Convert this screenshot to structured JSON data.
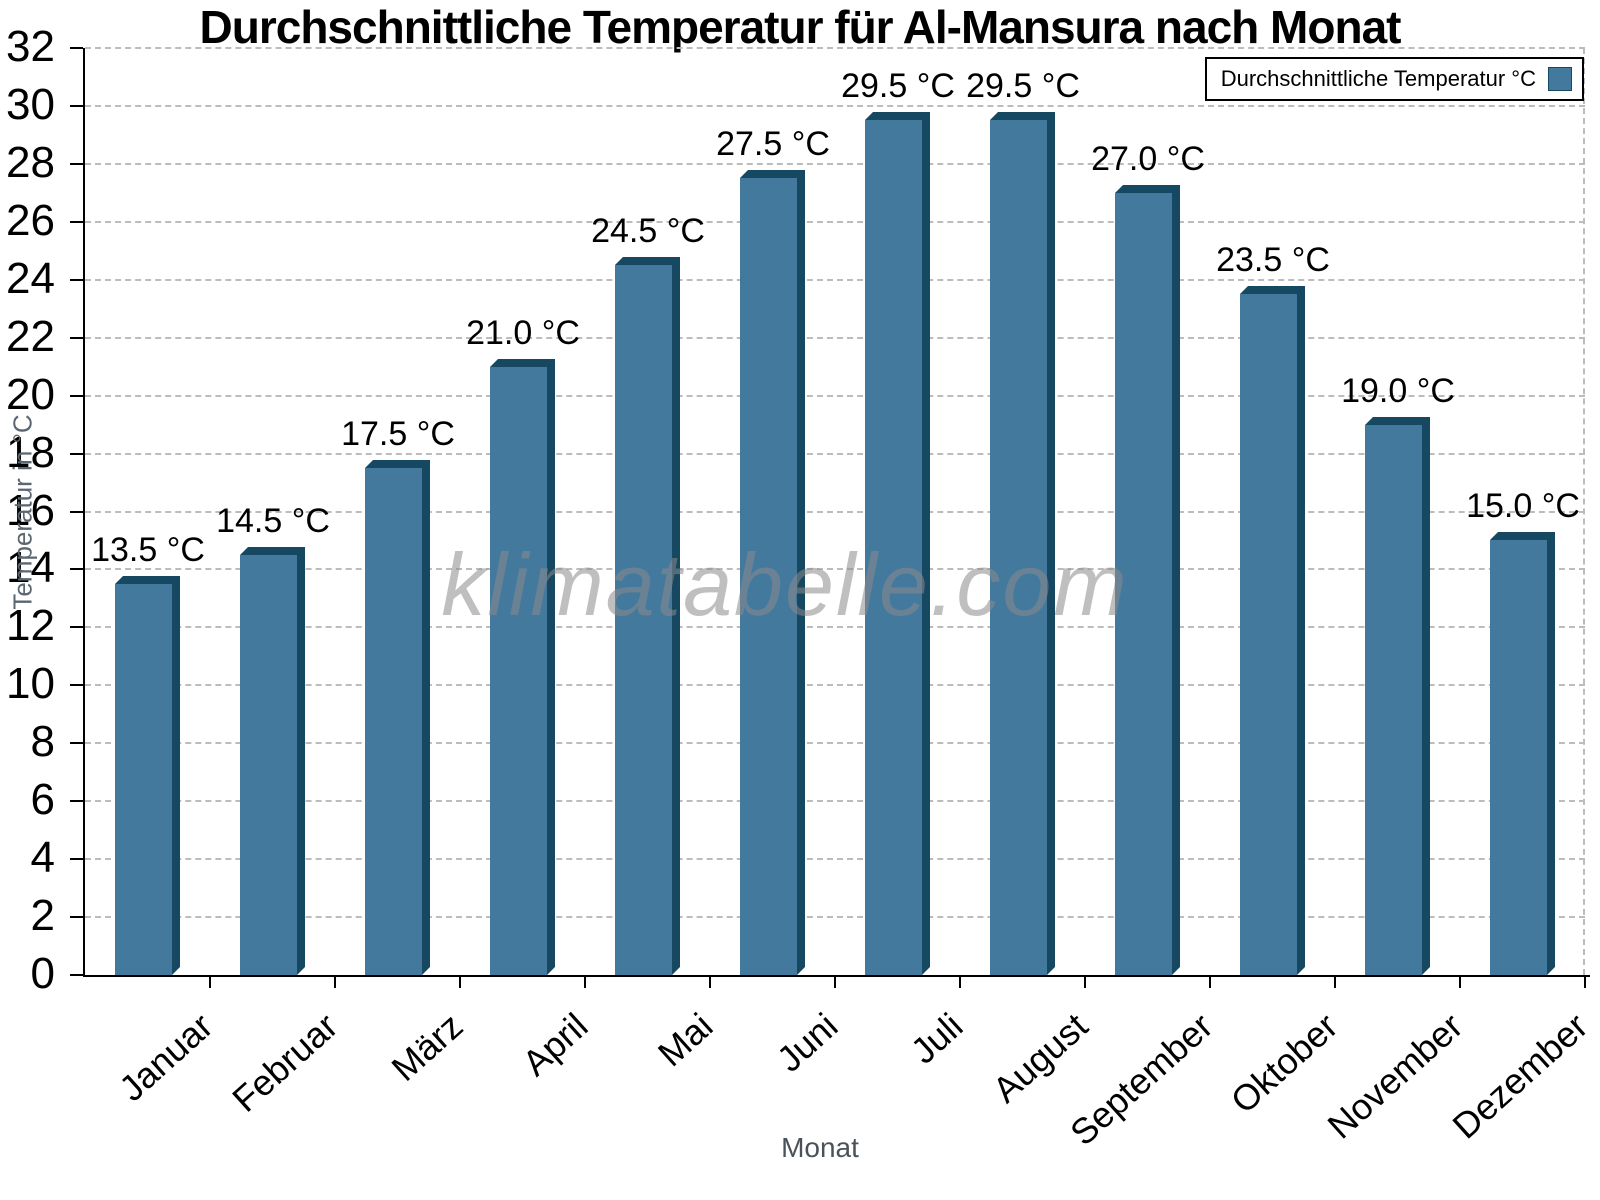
{
  "watermark": "klimatabelle.com",
  "colors": {
    "bar_front": "#44799e",
    "bar_side": "#164862",
    "grid": "#bcbcbc",
    "axis": "#000000",
    "axis_title_gray": "#5b6670",
    "watermark_gray": "#8a8a8a"
  },
  "chart_data": {
    "type": "bar",
    "title": "Durchschnittliche Temperatur für Al-Mansura nach Monat",
    "series_name": "Durchschnittliche Temperatur °C",
    "categories": [
      "Januar",
      "Februar",
      "März",
      "April",
      "Mai",
      "Juni",
      "Juli",
      "August",
      "September",
      "Oktober",
      "November",
      "Dezember"
    ],
    "values": [
      13.5,
      14.5,
      17.5,
      21.0,
      24.5,
      27.5,
      29.5,
      29.5,
      27.0,
      23.5,
      19.0,
      15.0
    ],
    "value_labels": [
      "13.5 °C",
      "14.5 °C",
      "17.5 °C",
      "21.0 °C",
      "24.5 °C",
      "27.5 °C",
      "29.5 °C",
      "29.5 °C",
      "27.0 °C",
      "23.5 °C",
      "19.0 °C",
      "15.0 °C"
    ],
    "xlabel": "Monat",
    "ylabel": "Temperatur in °C",
    "ylim": [
      0,
      32
    ],
    "ytick_step": 2,
    "grid": "horizontal-dashed",
    "legend_position": "top-right",
    "bar_style": "3d-bevel"
  }
}
